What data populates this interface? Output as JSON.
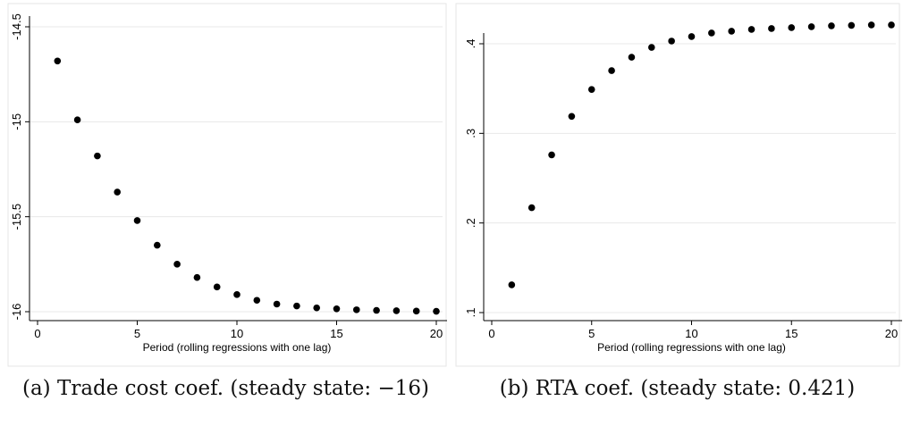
{
  "chart_data": [
    {
      "type": "scatter",
      "xlabel": "Period (rolling regressions with one lag)",
      "ylabel": "",
      "xlim": [
        0,
        20
      ],
      "ylim": [
        -16,
        -14.5
      ],
      "x_ticks": [
        "0",
        "5",
        "10",
        "15",
        "20"
      ],
      "y_ticks": [
        "-16",
        "-15.5",
        "-15",
        "-14.5"
      ],
      "grid": "horizontal",
      "x": [
        1,
        2,
        3,
        4,
        5,
        6,
        7,
        8,
        9,
        10,
        11,
        12,
        13,
        14,
        15,
        16,
        17,
        18,
        19,
        20
      ],
      "y": [
        -14.68,
        -14.99,
        -15.18,
        -15.37,
        -15.52,
        -15.65,
        -15.75,
        -15.82,
        -15.87,
        -15.91,
        -15.94,
        -15.96,
        -15.97,
        -15.98,
        -15.985,
        -15.99,
        -15.993,
        -15.995,
        -15.997,
        -15.998
      ],
      "marker_color": "#000000",
      "caption_label": "(a)",
      "caption_text": "Trade cost coef. (steady state: −16)"
    },
    {
      "type": "scatter",
      "xlabel": "Period (rolling regressions with one lag)",
      "ylabel": "",
      "xlim": [
        0,
        20
      ],
      "ylim": [
        0.1,
        0.4
      ],
      "x_ticks": [
        "0",
        "5",
        "10",
        "15",
        "20"
      ],
      "y_ticks": [
        ".1",
        ".2",
        ".3",
        ".4"
      ],
      "grid": "horizontal",
      "x": [
        1,
        2,
        3,
        4,
        5,
        6,
        7,
        8,
        9,
        10,
        11,
        12,
        13,
        14,
        15,
        16,
        17,
        18,
        19,
        20
      ],
      "y": [
        0.131,
        0.217,
        0.276,
        0.319,
        0.349,
        0.37,
        0.385,
        0.396,
        0.403,
        0.408,
        0.412,
        0.414,
        0.416,
        0.417,
        0.418,
        0.419,
        0.42,
        0.4205,
        0.421,
        0.421
      ],
      "marker_color": "#000000",
      "caption_label": "(b)",
      "caption_text": "RTA coef. (steady state: 0.421)"
    }
  ]
}
